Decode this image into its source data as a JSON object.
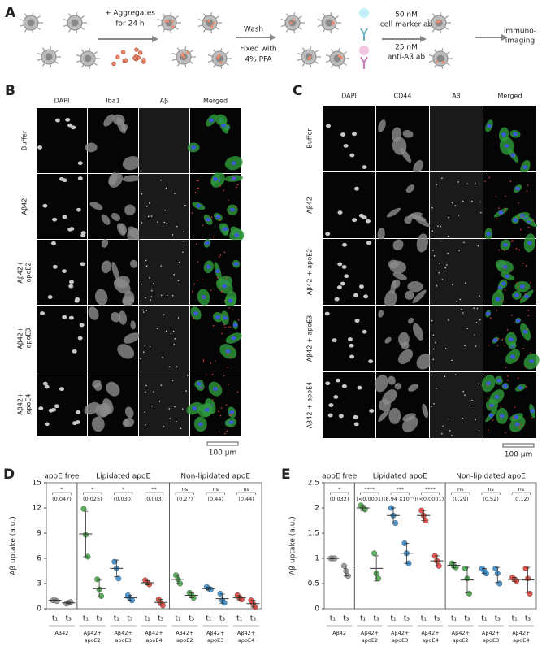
{
  "figure": {
    "a": {
      "label": "A",
      "aggregates": [
        "+ Aggregates",
        "for 24 h"
      ],
      "wash": "Wash",
      "fix": [
        "Fixed with",
        "4% PFA"
      ],
      "marker_ab": [
        "50 nM",
        "cell marker ab"
      ],
      "abeta_ab": [
        "25 nM",
        "anti-Aβ ab"
      ],
      "imaging": [
        "immuno-",
        "imaging"
      ]
    },
    "b": {
      "label": "B",
      "columns": [
        "DAPI",
        "Iba1",
        "Aβ",
        "Merged"
      ],
      "rows": [
        [
          "Buffer"
        ],
        [
          "Aβ42"
        ],
        [
          "Aβ42+",
          "apoE2"
        ],
        [
          "Aβ42+",
          "apoE3"
        ],
        [
          "Aβ42+",
          "apoE4"
        ]
      ],
      "scale": "100 μm"
    },
    "c": {
      "label": "C",
      "columns": [
        "DAPI",
        "CD44",
        "Aβ",
        "Merged"
      ],
      "rows": [
        [
          "Buffer"
        ],
        [
          "Aβ42"
        ],
        [
          "Aβ42 + apoE2"
        ],
        [
          "Aβ42 + apoE3"
        ],
        [
          "Aβ42 + apoE4"
        ]
      ],
      "scale": "100 μm"
    }
  },
  "chart_data": [
    {
      "type": "dot",
      "label": "D",
      "ylabel": "Aβ uptake (a.u.)",
      "ylim": [
        0,
        15
      ],
      "yticks": [
        0,
        3,
        6,
        9,
        12,
        15
      ],
      "sections": [
        {
          "title": "apoE free",
          "groups": [
            {
              "name": [
                "Aβ42"
              ],
              "color": "#9a9a9a",
              "significance": "*",
              "p": "(0.047)",
              "series": [
                {
                  "time": "t₁",
                  "points": [
                    1.0,
                    1.0,
                    0.9
                  ],
                  "mean": 1.0,
                  "sd": 0.05
                },
                {
                  "time": "t₃",
                  "points": [
                    0.6,
                    0.7,
                    0.8
                  ],
                  "mean": 0.7,
                  "sd": 0.1
                }
              ]
            }
          ]
        },
        {
          "title": "Lipidated apoE",
          "groups": [
            {
              "name": [
                "Aβ42+",
                "apoE2"
              ],
              "color": "#4aa84a",
              "significance": "*",
              "p": "(0.025)",
              "series": [
                {
                  "time": "t₁",
                  "points": [
                    11.9,
                    8.8,
                    6.2
                  ],
                  "mean": 8.9,
                  "sd": 2.7
                },
                {
                  "time": "t₃",
                  "points": [
                    3.5,
                    2.3,
                    1.5
                  ],
                  "mean": 2.4,
                  "sd": 1.0
                }
              ]
            },
            {
              "name": [
                "Aβ42+",
                "apoE3"
              ],
              "color": "#3a8fd0",
              "significance": "*",
              "p": "(0.030)",
              "series": [
                {
                  "time": "t₁",
                  "points": [
                    5.6,
                    4.8,
                    3.6
                  ],
                  "mean": 4.8,
                  "sd": 1.0
                },
                {
                  "time": "t₃",
                  "points": [
                    1.6,
                    1.2,
                    1.0
                  ],
                  "mean": 1.3,
                  "sd": 0.3
                }
              ]
            },
            {
              "name": [
                "Aβ42+",
                "apoE4"
              ],
              "color": "#e0443a",
              "significance": "**",
              "p": "(0.003)",
              "series": [
                {
                  "time": "t₁",
                  "points": [
                    3.4,
                    3.1,
                    2.9
                  ],
                  "mean": 3.1,
                  "sd": 0.25
                },
                {
                  "time": "t₃",
                  "points": [
                    1.1,
                    0.7,
                    0.4
                  ],
                  "mean": 0.75,
                  "sd": 0.35
                }
              ]
            }
          ]
        },
        {
          "title": "Non-lipidated apoE",
          "groups": [
            {
              "name": [
                "Aβ42+",
                "apoE2"
              ],
              "color": "#4aa84a",
              "significance": "ns",
              "p": "(0.27)",
              "series": [
                {
                  "time": "t₁",
                  "points": [
                    4.0,
                    3.5,
                    3.0
                  ],
                  "mean": 3.5,
                  "sd": 0.5
                },
                {
                  "time": "t₃",
                  "points": [
                    1.9,
                    1.7,
                    1.3
                  ],
                  "mean": 1.6,
                  "sd": 0.3
                }
              ]
            },
            {
              "name": [
                "Aβ42+",
                "apoE3"
              ],
              "color": "#3a8fd0",
              "significance": "ns",
              "p": "(0.44)",
              "series": [
                {
                  "time": "t₁",
                  "points": [
                    2.6,
                    2.4,
                    2.3
                  ],
                  "mean": 2.4,
                  "sd": 0.15
                },
                {
                  "time": "t₃",
                  "points": [
                    1.8,
                    1.0,
                    0.7
                  ],
                  "mean": 1.2,
                  "sd": 0.55
                }
              ]
            },
            {
              "name": [
                "Aβ42+",
                "apoE4"
              ],
              "color": "#e0443a",
              "significance": "ns",
              "p": "(0.44)",
              "series": [
                {
                  "time": "t₁",
                  "points": [
                    1.6,
                    1.3,
                    1.1
                  ],
                  "mean": 1.3,
                  "sd": 0.25
                },
                {
                  "time": "t₃",
                  "points": [
                    1.0,
                    0.6,
                    0.2
                  ],
                  "mean": 0.6,
                  "sd": 0.4
                }
              ]
            }
          ]
        }
      ]
    },
    {
      "type": "dot",
      "label": "E",
      "ylabel": "Aβ uptake (a.u.)",
      "ylim": [
        0,
        2.5
      ],
      "yticks": [
        0,
        0.5,
        1,
        1.5,
        2,
        2.5
      ],
      "sections": [
        {
          "title": "apoE free",
          "groups": [
            {
              "name": [
                "Aβ42"
              ],
              "color": "#9a9a9a",
              "significance": "*",
              "p": "(0.032)",
              "series": [
                {
                  "time": "t₁",
                  "points": [
                    1.0,
                    1.0,
                    1.0
                  ],
                  "mean": 1.0,
                  "sd": 0.01
                },
                {
                  "time": "t₃",
                  "points": [
                    0.85,
                    0.75,
                    0.65
                  ],
                  "mean": 0.75,
                  "sd": 0.1
                }
              ]
            }
          ]
        },
        {
          "title": "Lipidated apoE",
          "groups": [
            {
              "name": [
                "Aβ42+",
                "apoE2"
              ],
              "color": "#4aa84a",
              "significance": "****",
              "p": "(<0.0001)",
              "series": [
                {
                  "time": "t₁",
                  "points": [
                    2.05,
                    2.0,
                    1.97
                  ],
                  "mean": 2.0,
                  "sd": 0.05
                },
                {
                  "time": "t₃",
                  "points": [
                    1.1,
                    0.7,
                    0.6
                  ],
                  "mean": 0.8,
                  "sd": 0.25
                }
              ]
            },
            {
              "name": [
                "Aβ42+",
                "apoE3"
              ],
              "color": "#3a8fd0",
              "significance": "***",
              "p": "(8.94 X10⁻⁵)",
              "series": [
                {
                  "time": "t₁",
                  "points": [
                    2.0,
                    1.85,
                    1.7
                  ],
                  "mean": 1.85,
                  "sd": 0.15
                },
                {
                  "time": "t₃",
                  "points": [
                    1.3,
                    1.1,
                    0.9
                  ],
                  "mean": 1.1,
                  "sd": 0.2
                }
              ]
            },
            {
              "name": [
                "Aβ42+",
                "apoE4"
              ],
              "color": "#e0443a",
              "significance": "****",
              "p": "(<0.0001)",
              "series": [
                {
                  "time": "t₁",
                  "points": [
                    1.95,
                    1.85,
                    1.75
                  ],
                  "mean": 1.85,
                  "sd": 0.1
                },
                {
                  "time": "t₃",
                  "points": [
                    1.05,
                    0.95,
                    0.85
                  ],
                  "mean": 0.95,
                  "sd": 0.1
                }
              ]
            }
          ]
        },
        {
          "title": "Non-lipidated apoE",
          "groups": [
            {
              "name": [
                "Aβ42+",
                "apoE2"
              ],
              "color": "#4aa84a",
              "significance": "ns",
              "p": "(0.29)",
              "series": [
                {
                  "time": "t₁",
                  "points": [
                    0.9,
                    0.85,
                    0.82
                  ],
                  "mean": 0.86,
                  "sd": 0.05
                },
                {
                  "time": "t₃",
                  "points": [
                    0.8,
                    0.6,
                    0.3
                  ],
                  "mean": 0.57,
                  "sd": 0.25
                }
              ]
            },
            {
              "name": [
                "Aβ42+",
                "apoE3"
              ],
              "color": "#3a8fd0",
              "significance": "ns",
              "p": "(0.52)",
              "series": [
                {
                  "time": "t₁",
                  "points": [
                    0.8,
                    0.75,
                    0.7
                  ],
                  "mean": 0.75,
                  "sd": 0.05
                },
                {
                  "time": "t₃",
                  "points": [
                    0.8,
                    0.7,
                    0.5
                  ],
                  "mean": 0.67,
                  "sd": 0.15
                }
              ]
            },
            {
              "name": [
                "Aβ42+",
                "apoE4"
              ],
              "color": "#e0443a",
              "significance": "ns",
              "p": "(0.12)",
              "series": [
                {
                  "time": "t₁",
                  "points": [
                    0.62,
                    0.58,
                    0.55
                  ],
                  "mean": 0.58,
                  "sd": 0.04
                },
                {
                  "time": "t₃",
                  "points": [
                    0.8,
                    0.6,
                    0.3
                  ],
                  "mean": 0.57,
                  "sd": 0.25
                }
              ]
            }
          ]
        }
      ]
    }
  ]
}
